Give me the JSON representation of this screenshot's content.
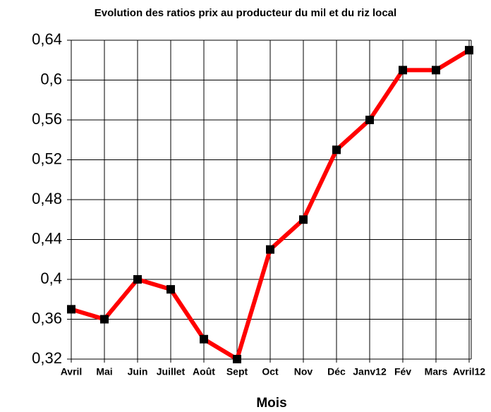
{
  "chart_data": {
    "type": "line",
    "title": "Evolution des ratios prix au producteur du mil et du riz local",
    "x_label": "Mois",
    "categories": [
      "Avril",
      "Mai",
      "Juin",
      "Juillet",
      "Août",
      "Sept",
      "Oct",
      "Nov",
      "Déc",
      "Janv12",
      "Fév",
      "Mars",
      "Avril12"
    ],
    "series": [
      {
        "color": "#ff0000",
        "marker_color": "#000000",
        "values": [
          0.37,
          0.36,
          0.4,
          0.39,
          0.34,
          0.32,
          0.43,
          0.46,
          0.53,
          0.56,
          0.61,
          0.61,
          0.63
        ]
      }
    ],
    "ylim": [
      0.32,
      0.64
    ],
    "yticks": [
      {
        "value": 0.32,
        "label": "0,32"
      },
      {
        "value": 0.36,
        "label": "0,36"
      },
      {
        "value": 0.4,
        "label": "0,4"
      },
      {
        "value": 0.44,
        "label": "0,44"
      },
      {
        "value": 0.48,
        "label": "0,48"
      },
      {
        "value": 0.52,
        "label": "0,52"
      },
      {
        "value": 0.56,
        "label": "0,56"
      },
      {
        "value": 0.6,
        "label": "0,6"
      },
      {
        "value": 0.64,
        "label": "0,64"
      }
    ],
    "grid": true
  }
}
